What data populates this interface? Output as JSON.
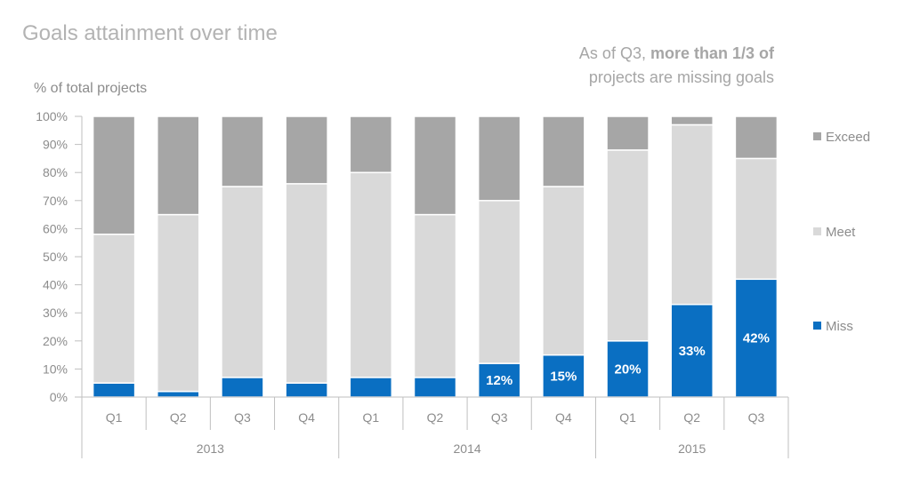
{
  "chart_data": {
    "type": "bar",
    "stacked": true,
    "title": "Goals attainment over time",
    "ylabel": "% of total projects",
    "annotation": {
      "prefix": "As of Q3, ",
      "bold_line1": "more than 1/3 of",
      "bold_line2": "projects are missing goals"
    },
    "categories": [
      "Q1",
      "Q2",
      "Q3",
      "Q4",
      "Q1",
      "Q2",
      "Q3",
      "Q4",
      "Q1",
      "Q2",
      "Q3"
    ],
    "groups": [
      {
        "label": "2013",
        "count": 4
      },
      {
        "label": "2014",
        "count": 4
      },
      {
        "label": "2015",
        "count": 3
      }
    ],
    "ylim": [
      0,
      100
    ],
    "yticks": [
      "0%",
      "10%",
      "20%",
      "30%",
      "40%",
      "50%",
      "60%",
      "70%",
      "80%",
      "90%",
      "100%"
    ],
    "series": [
      {
        "name": "Miss",
        "color": "#0a6fc2",
        "values": [
          5,
          2,
          7,
          5,
          7,
          7,
          12,
          15,
          20,
          33,
          42
        ],
        "labels": [
          "",
          "",
          "",
          "",
          "",
          "",
          "12%",
          "15%",
          "20%",
          "33%",
          "42%"
        ]
      },
      {
        "name": "Meet",
        "color": "#d9d9d9",
        "values": [
          53,
          63,
          68,
          71,
          73,
          58,
          58,
          60,
          68,
          64,
          43
        ]
      },
      {
        "name": "Exceed",
        "color": "#a6a6a6",
        "values": [
          42,
          35,
          25,
          24,
          20,
          35,
          30,
          25,
          12,
          3,
          15
        ]
      }
    ],
    "legend_position": "right",
    "grid": false,
    "axis_color": "#bfbfbf"
  }
}
